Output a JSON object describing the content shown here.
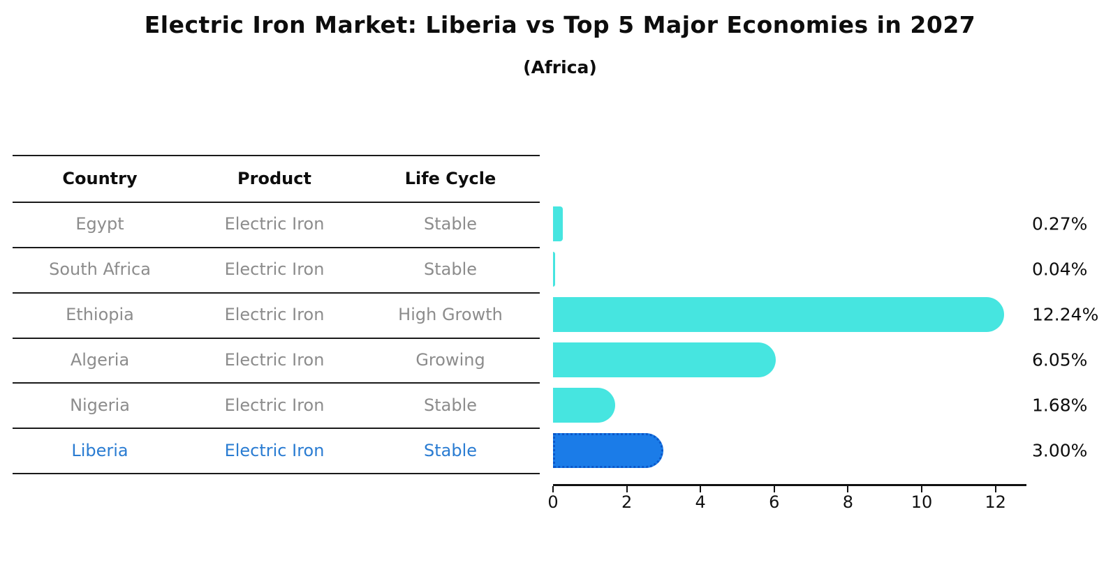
{
  "title": "Electric Iron Market: Liberia vs Top 5 Major Economies in 2027",
  "subtitle": "(Africa)",
  "table": {
    "headers": [
      "Country",
      "Product",
      "Life Cycle"
    ],
    "rows": [
      {
        "country": "Egypt",
        "product": "Electric Iron",
        "life_cycle": "Stable",
        "highlight": false
      },
      {
        "country": "South Africa",
        "product": "Electric Iron",
        "life_cycle": "Stable",
        "highlight": false
      },
      {
        "country": "Ethiopia",
        "product": "Electric Iron",
        "life_cycle": "High Growth",
        "highlight": false
      },
      {
        "country": "Algeria",
        "product": "Electric Iron",
        "life_cycle": "Growing",
        "highlight": false
      },
      {
        "country": "Nigeria",
        "product": "Electric Iron",
        "life_cycle": "Stable",
        "highlight": false
      },
      {
        "country": "Liberia",
        "product": "Electric Iron",
        "life_cycle": "Stable",
        "highlight": true
      }
    ]
  },
  "chart_data": {
    "type": "bar",
    "orientation": "horizontal",
    "title": "Electric Iron Market: Liberia vs Top 5 Major Economies in 2027",
    "subtitle": "(Africa)",
    "categories": [
      "Egypt",
      "South Africa",
      "Ethiopia",
      "Algeria",
      "Nigeria",
      "Liberia"
    ],
    "values": [
      0.27,
      0.04,
      12.24,
      6.05,
      1.68,
      3.0
    ],
    "value_labels": [
      "0.27%",
      "0.04%",
      "12.24%",
      "6.05%",
      "1.68%",
      "3.00%"
    ],
    "xticks": [
      0,
      2,
      4,
      6,
      8,
      10,
      12
    ],
    "xlim": [
      0,
      12.85
    ],
    "xlabel": "",
    "ylabel": "",
    "grid": false,
    "legend": false,
    "bar_color": "#46e5e0",
    "highlight_color": "#1b7ce8",
    "highlight_border_color": "#0b57c9",
    "highlight_text_color": "#2a7cd2",
    "highlight_index": 5,
    "value_label_position": "right-of-plot"
  }
}
